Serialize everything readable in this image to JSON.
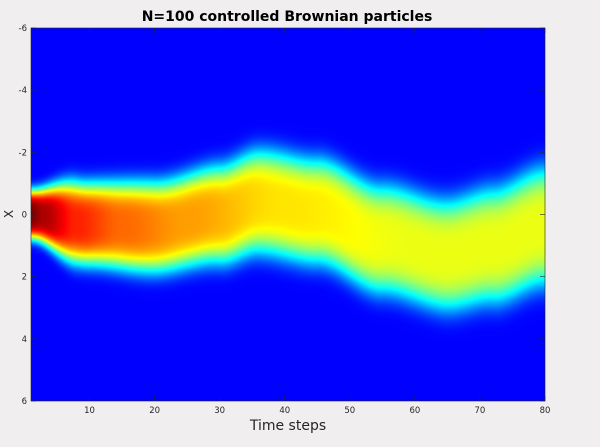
{
  "chart_data": {
    "type": "heatmap",
    "title": "N=100 controlled Brownian particles",
    "xlabel": "Time steps",
    "ylabel": "X",
    "xlim": [
      1,
      80
    ],
    "ylim": [
      -6,
      6
    ],
    "y_axis_direction": "reversed",
    "x_ticks": [
      10,
      20,
      30,
      40,
      50,
      60,
      70,
      80
    ],
    "y_ticks": [
      -6,
      -4,
      -2,
      0,
      2,
      4,
      6
    ],
    "colormap": "jet",
    "background_color": "#00008f",
    "density_model": {
      "description": "Particle density over time; center oscillates, spread widens",
      "center_points": [
        [
          1,
          0.0
        ],
        [
          10,
          0.3
        ],
        [
          20,
          0.4
        ],
        [
          30,
          0.0
        ],
        [
          36,
          -0.4
        ],
        [
          45,
          -0.1
        ],
        [
          55,
          0.8
        ],
        [
          65,
          1.3
        ],
        [
          72,
          1.0
        ],
        [
          80,
          0.4
        ]
      ],
      "sigma_points": [
        [
          1,
          0.55
        ],
        [
          8,
          0.9
        ],
        [
          20,
          1.0
        ],
        [
          40,
          1.15
        ],
        [
          60,
          1.2
        ],
        [
          80,
          1.3
        ]
      ],
      "peak_points": [
        [
          1,
          1.0
        ],
        [
          3,
          0.95
        ],
        [
          8,
          0.82
        ],
        [
          15,
          0.74
        ],
        [
          25,
          0.68
        ],
        [
          40,
          0.6
        ],
        [
          60,
          0.55
        ],
        [
          80,
          0.55
        ]
      ]
    }
  }
}
